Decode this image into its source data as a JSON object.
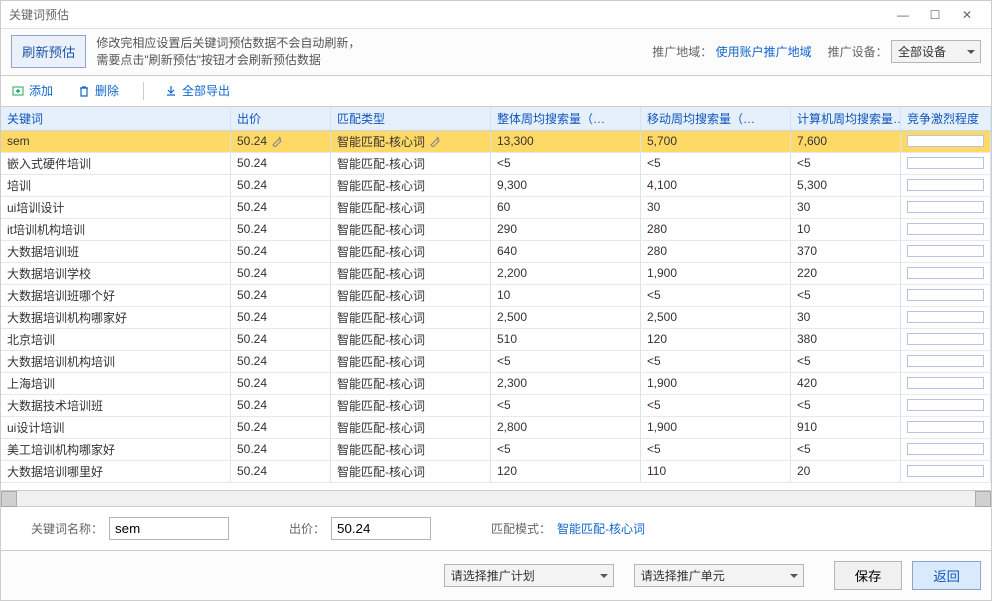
{
  "window": {
    "title": "关键词预估"
  },
  "topbar": {
    "refresh_btn": "刷新预估",
    "note_line1": "修改完相应设置后关键词预估数据不会自动刷新，",
    "note_line2": "需要点击\"刷新预估\"按钮才会刷新预估数据",
    "region_label": "推广地域：",
    "region_link": "使用账户推广地域",
    "device_label": "推广设备：",
    "device_value": "全部设备"
  },
  "toolbar": {
    "add": "添加",
    "del": "删除",
    "export": "全部导出"
  },
  "grid": {
    "headers": [
      "关键词",
      "出价",
      "匹配类型",
      "整体周均搜索量（…",
      "移动周均搜索量（…",
      "计算机周均搜索量…",
      "竞争激烈程度"
    ],
    "rows": [
      {
        "kw": "sem",
        "bid": "50.24",
        "match": "智能匹配-核心词",
        "total": "13,300",
        "mobile": "5,700",
        "pc": "7,600",
        "sel": true
      },
      {
        "kw": "嵌入式硬件培训",
        "bid": "50.24",
        "match": "智能匹配-核心词",
        "total": "<5",
        "mobile": "<5",
        "pc": "<5"
      },
      {
        "kw": "培训",
        "bid": "50.24",
        "match": "智能匹配-核心词",
        "total": "9,300",
        "mobile": "4,100",
        "pc": "5,300"
      },
      {
        "kw": "ui培训设计",
        "bid": "50.24",
        "match": "智能匹配-核心词",
        "total": "60",
        "mobile": "30",
        "pc": "30"
      },
      {
        "kw": "it培训机构培训",
        "bid": "50.24",
        "match": "智能匹配-核心词",
        "total": "290",
        "mobile": "280",
        "pc": "10"
      },
      {
        "kw": "大数据培训班",
        "bid": "50.24",
        "match": "智能匹配-核心词",
        "total": "640",
        "mobile": "280",
        "pc": "370"
      },
      {
        "kw": "大数据培训学校",
        "bid": "50.24",
        "match": "智能匹配-核心词",
        "total": "2,200",
        "mobile": "1,900",
        "pc": "220"
      },
      {
        "kw": "大数据培训班哪个好",
        "bid": "50.24",
        "match": "智能匹配-核心词",
        "total": "10",
        "mobile": "<5",
        "pc": "<5"
      },
      {
        "kw": "大数据培训机构哪家好",
        "bid": "50.24",
        "match": "智能匹配-核心词",
        "total": "2,500",
        "mobile": "2,500",
        "pc": "30"
      },
      {
        "kw": "北京培训",
        "bid": "50.24",
        "match": "智能匹配-核心词",
        "total": "510",
        "mobile": "120",
        "pc": "380"
      },
      {
        "kw": "大数据培训机构培训",
        "bid": "50.24",
        "match": "智能匹配-核心词",
        "total": "<5",
        "mobile": "<5",
        "pc": "<5"
      },
      {
        "kw": "上海培训",
        "bid": "50.24",
        "match": "智能匹配-核心词",
        "total": "2,300",
        "mobile": "1,900",
        "pc": "420"
      },
      {
        "kw": "大数据技术培训班",
        "bid": "50.24",
        "match": "智能匹配-核心词",
        "total": "<5",
        "mobile": "<5",
        "pc": "<5"
      },
      {
        "kw": "ui设计培训",
        "bid": "50.24",
        "match": "智能匹配-核心词",
        "total": "2,800",
        "mobile": "1,900",
        "pc": "910"
      },
      {
        "kw": "美工培训机构哪家好",
        "bid": "50.24",
        "match": "智能匹配-核心词",
        "total": "<5",
        "mobile": "<5",
        "pc": "<5"
      },
      {
        "kw": "大数据培训哪里好",
        "bid": "50.24",
        "match": "智能匹配-核心词",
        "total": "120",
        "mobile": "110",
        "pc": "20"
      }
    ]
  },
  "form": {
    "kw_label": "关键词名称：",
    "kw_value": "sem",
    "bid_label": "出价：",
    "bid_value": "50.24",
    "match_label": "匹配模式：",
    "match_value": "智能匹配-核心词"
  },
  "footer": {
    "plan_placeholder": "请选择推广计划",
    "unit_placeholder": "请选择推广单元",
    "save": "保存",
    "back": "返回"
  },
  "colors": {
    "header_bg": "#e6f0fb",
    "selected_row": "#ffd966",
    "link": "#1166cc"
  }
}
